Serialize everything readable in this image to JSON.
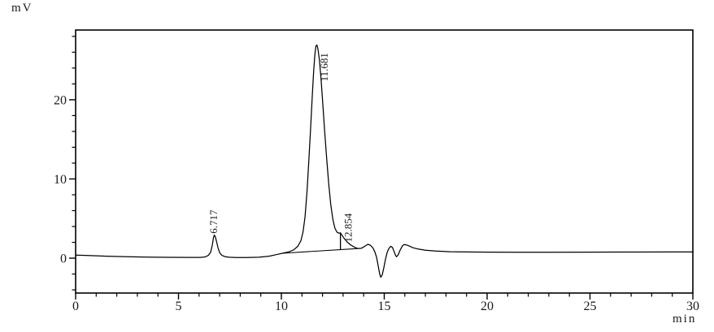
{
  "units": {
    "y": "mV",
    "x": "min"
  },
  "chart_data": {
    "type": "line",
    "title": "",
    "ylabel": "mV",
    "xlabel": "min",
    "xlim": [
      0,
      30
    ],
    "ylim": [
      -4.4,
      28.8
    ],
    "x_major_ticks": [
      0,
      5,
      10,
      15,
      20,
      25,
      30
    ],
    "x_tick_labels": [
      "0",
      "5",
      "10",
      "15",
      "20",
      "25",
      "30"
    ],
    "x_minor_step": 1,
    "y_major_ticks": [
      0,
      10,
      20
    ],
    "y_tick_labels": [
      "0",
      "10",
      "20"
    ],
    "y_minor_step": 2,
    "grid": false,
    "legend": false,
    "line_color": "#000000",
    "background": "#ffffff",
    "peaks": [
      {
        "retention_time": "6.717",
        "apex_x_min": 6.74,
        "apex_mv": 2.93,
        "label_x_min": 6.87,
        "label_base_mv": 3.1
      },
      {
        "retention_time": "11.681",
        "apex_x_min": 11.73,
        "apex_mv": 26.9,
        "label_x_min": 12.25,
        "label_base_mv": 22.3
      },
      {
        "retention_time": "12.854",
        "apex_x_min": 12.87,
        "apex_mv": 3.2,
        "label_x_min": 13.42,
        "label_base_mv": 2.0
      }
    ],
    "integration": {
      "baseline": [
        [
          10.05,
          0.62
        ],
        [
          13.72,
          1.22
        ]
      ],
      "drop_line": {
        "x_min": 12.87,
        "mv_from": 1.07,
        "mv_to": 3.2
      }
    },
    "trace": [
      [
        0,
        0.4
      ],
      [
        0.6,
        0.33
      ],
      [
        1.5,
        0.25
      ],
      [
        2.5,
        0.19
      ],
      [
        3.5,
        0.14
      ],
      [
        4.5,
        0.11
      ],
      [
        5.5,
        0.1
      ],
      [
        6.05,
        0.1
      ],
      [
        6.3,
        0.16
      ],
      [
        6.45,
        0.35
      ],
      [
        6.56,
        0.75
      ],
      [
        6.64,
        1.6
      ],
      [
        6.7,
        2.6
      ],
      [
        6.74,
        2.93
      ],
      [
        6.79,
        2.7
      ],
      [
        6.85,
        2.1
      ],
      [
        6.92,
        1.3
      ],
      [
        7.0,
        0.7
      ],
      [
        7.1,
        0.38
      ],
      [
        7.25,
        0.2
      ],
      [
        7.45,
        0.12
      ],
      [
        7.8,
        0.09
      ],
      [
        8.3,
        0.08
      ],
      [
        8.9,
        0.12
      ],
      [
        9.4,
        0.25
      ],
      [
        9.75,
        0.45
      ],
      [
        10.05,
        0.62
      ],
      [
        10.35,
        0.8
      ],
      [
        10.6,
        1.05
      ],
      [
        10.8,
        1.5
      ],
      [
        10.95,
        2.2
      ],
      [
        11.05,
        3.3
      ],
      [
        11.15,
        5.2
      ],
      [
        11.25,
        8.5
      ],
      [
        11.33,
        12.0
      ],
      [
        11.42,
        16.3
      ],
      [
        11.5,
        20.3
      ],
      [
        11.57,
        23.6
      ],
      [
        11.63,
        25.7
      ],
      [
        11.68,
        26.8
      ],
      [
        11.73,
        26.9
      ],
      [
        11.78,
        26.4
      ],
      [
        11.85,
        25.0
      ],
      [
        11.93,
        22.6
      ],
      [
        12.0,
        20.0
      ],
      [
        12.1,
        16.2
      ],
      [
        12.2,
        12.6
      ],
      [
        12.3,
        9.4
      ],
      [
        12.4,
        6.8
      ],
      [
        12.5,
        4.9
      ],
      [
        12.6,
        3.8
      ],
      [
        12.7,
        3.3
      ],
      [
        12.8,
        3.15
      ],
      [
        12.87,
        3.2
      ],
      [
        12.95,
        2.9
      ],
      [
        13.05,
        2.5
      ],
      [
        13.2,
        2.05
      ],
      [
        13.35,
        1.7
      ],
      [
        13.55,
        1.4
      ],
      [
        13.72,
        1.22
      ],
      [
        13.88,
        1.25
      ],
      [
        14.05,
        1.5
      ],
      [
        14.2,
        1.75
      ],
      [
        14.32,
        1.65
      ],
      [
        14.45,
        1.3
      ],
      [
        14.55,
        0.75
      ],
      [
        14.63,
        0.1
      ],
      [
        14.7,
        -0.9
      ],
      [
        14.78,
        -2.0
      ],
      [
        14.83,
        -2.4
      ],
      [
        14.9,
        -2.1
      ],
      [
        14.98,
        -1.2
      ],
      [
        15.06,
        -0.15
      ],
      [
        15.14,
        0.7
      ],
      [
        15.23,
        1.25
      ],
      [
        15.32,
        1.5
      ],
      [
        15.4,
        1.35
      ],
      [
        15.48,
        0.85
      ],
      [
        15.55,
        0.35
      ],
      [
        15.6,
        0.18
      ],
      [
        15.68,
        0.45
      ],
      [
        15.78,
        1.05
      ],
      [
        15.88,
        1.55
      ],
      [
        15.97,
        1.72
      ],
      [
        16.08,
        1.68
      ],
      [
        16.2,
        1.55
      ],
      [
        16.4,
        1.32
      ],
      [
        16.65,
        1.15
      ],
      [
        17.0,
        1.0
      ],
      [
        17.5,
        0.9
      ],
      [
        18.2,
        0.82
      ],
      [
        19.0,
        0.78
      ],
      [
        20.0,
        0.76
      ],
      [
        21.5,
        0.75
      ],
      [
        23.0,
        0.75
      ],
      [
        25.0,
        0.76
      ],
      [
        27.0,
        0.77
      ],
      [
        29.0,
        0.78
      ],
      [
        30.0,
        0.78
      ]
    ]
  }
}
